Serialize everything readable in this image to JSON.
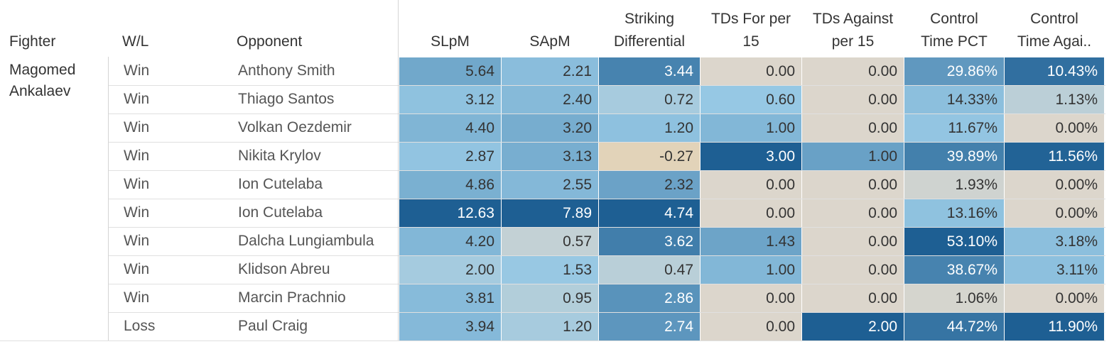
{
  "chart_data": {
    "type": "table",
    "columns": [
      {
        "key": "fighter",
        "label": "Fighter"
      },
      {
        "key": "wl",
        "label": "W/L"
      },
      {
        "key": "opponent",
        "label": "Opponent"
      },
      {
        "key": "slpm",
        "label": "SLpM"
      },
      {
        "key": "sapm",
        "label": "SApM"
      },
      {
        "key": "diff",
        "label": [
          "Striking",
          "Differential"
        ]
      },
      {
        "key": "tdfor",
        "label": [
          "TDs For per",
          "15"
        ]
      },
      {
        "key": "tdagainst",
        "label": [
          "TDs Against",
          "per 15"
        ]
      },
      {
        "key": "ctrl",
        "label": [
          "Control",
          "Time PCT"
        ]
      },
      {
        "key": "ctrlagainst",
        "label": [
          "Control",
          "Time Agai.."
        ]
      }
    ],
    "fighter": [
      "Magomed",
      "Ankalaev"
    ],
    "rows": [
      {
        "wl": "Win",
        "opponent": "Anthony Smith",
        "slpm": "5.64",
        "sapm": "2.21",
        "diff": "3.44",
        "tdfor": "0.00",
        "tdagainst": "0.00",
        "ctrl": "29.86%",
        "ctrlagainst": "10.43%"
      },
      {
        "wl": "Win",
        "opponent": "Thiago Santos",
        "slpm": "3.12",
        "sapm": "2.40",
        "diff": "0.72",
        "tdfor": "0.60",
        "tdagainst": "0.00",
        "ctrl": "14.33%",
        "ctrlagainst": "1.13%"
      },
      {
        "wl": "Win",
        "opponent": "Volkan Oezdemir",
        "slpm": "4.40",
        "sapm": "3.20",
        "diff": "1.20",
        "tdfor": "1.00",
        "tdagainst": "0.00",
        "ctrl": "11.67%",
        "ctrlagainst": "0.00%"
      },
      {
        "wl": "Win",
        "opponent": "Nikita Krylov",
        "slpm": "2.87",
        "sapm": "3.13",
        "diff": "-0.27",
        "tdfor": "3.00",
        "tdagainst": "1.00",
        "ctrl": "39.89%",
        "ctrlagainst": "11.56%"
      },
      {
        "wl": "Win",
        "opponent": "Ion Cutelaba",
        "slpm": "4.86",
        "sapm": "2.55",
        "diff": "2.32",
        "tdfor": "0.00",
        "tdagainst": "0.00",
        "ctrl": "1.93%",
        "ctrlagainst": "0.00%"
      },
      {
        "wl": "Win",
        "opponent": "Ion Cutelaba",
        "slpm": "12.63",
        "sapm": "7.89",
        "diff": "4.74",
        "tdfor": "0.00",
        "tdagainst": "0.00",
        "ctrl": "13.16%",
        "ctrlagainst": "0.00%"
      },
      {
        "wl": "Win",
        "opponent": "Dalcha Lungiambula",
        "slpm": "4.20",
        "sapm": "0.57",
        "diff": "3.62",
        "tdfor": "1.43",
        "tdagainst": "0.00",
        "ctrl": "53.10%",
        "ctrlagainst": "3.18%"
      },
      {
        "wl": "Win",
        "opponent": "Klidson Abreu",
        "slpm": "2.00",
        "sapm": "1.53",
        "diff": "0.47",
        "tdfor": "1.00",
        "tdagainst": "0.00",
        "ctrl": "38.67%",
        "ctrlagainst": "3.11%"
      },
      {
        "wl": "Win",
        "opponent": "Marcin Prachnio",
        "slpm": "3.81",
        "sapm": "0.95",
        "diff": "2.86",
        "tdfor": "0.00",
        "tdagainst": "0.00",
        "ctrl": "1.06%",
        "ctrlagainst": "0.00%"
      },
      {
        "wl": "Loss",
        "opponent": "Paul Craig",
        "slpm": "3.94",
        "sapm": "1.20",
        "diff": "2.74",
        "tdfor": "0.00",
        "tdagainst": "2.00",
        "ctrl": "44.72%",
        "ctrlagainst": "11.90%"
      }
    ],
    "color_scale": {
      "low": "#e8d0a8",
      "mid": "#dcd6cc",
      "high": "#1e5f93"
    }
  }
}
